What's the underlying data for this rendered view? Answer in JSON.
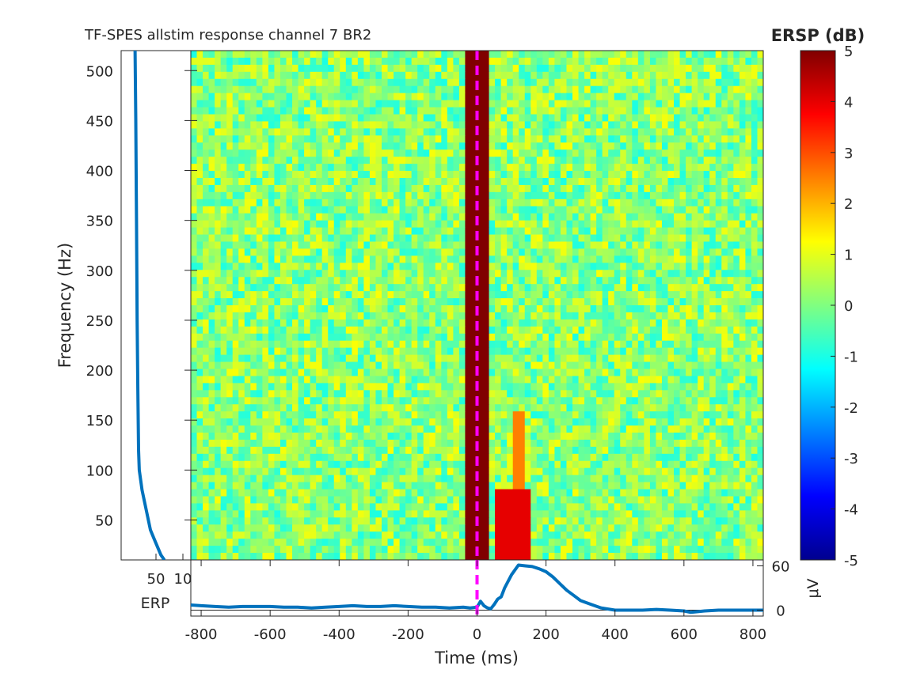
{
  "chart_data": [
    {
      "type": "heatmap",
      "title": "TF-SPES allstim response channel 7 BR2",
      "xlabel": "",
      "ylabel": "Frequency (Hz)",
      "xlim": [
        -830,
        830
      ],
      "ylim": [
        10,
        520
      ],
      "yticks": [
        50,
        100,
        150,
        200,
        250,
        300,
        350,
        400,
        450,
        500
      ],
      "colorbar": {
        "label": "ERSP (dB)",
        "clim": [
          -5,
          5
        ],
        "ticks": [
          5,
          4,
          3,
          2,
          1,
          0,
          -1,
          -2,
          -3,
          -4,
          -5
        ],
        "colormap": "jet",
        "stops": [
          "#00008f",
          "#0000ff",
          "#0080ff",
          "#00ffff",
          "#80ff80",
          "#ffff00",
          "#ff8000",
          "#ff0000",
          "#800000"
        ]
      },
      "stim_marker": {
        "time_ms": 0,
        "color": "#ff00ff",
        "style": "dashed"
      },
      "features": [
        {
          "t_min": -40,
          "t_max": 40,
          "f_min": 10,
          "f_max": 520,
          "value_db": 5
        },
        {
          "t_min": 60,
          "t_max": 160,
          "f_min": 10,
          "f_max": 80,
          "value_db": 4
        },
        {
          "t_min": 110,
          "t_max": 130,
          "f_min": 80,
          "f_max": 160,
          "value_db": 2.5
        }
      ]
    },
    {
      "type": "line",
      "title": "",
      "xlabel": "",
      "ylabel": "",
      "xlim": [
        0,
        100
      ],
      "ylim": [
        10,
        520
      ],
      "xtick_labels": [
        "50",
        "10"
      ],
      "color": "#0072bd",
      "series": [
        {
          "x": [
            20,
            21,
            22,
            23,
            24,
            25,
            26,
            30,
            36,
            42,
            48,
            57,
            62
          ],
          "y": [
            520,
            450,
            350,
            250,
            180,
            120,
            100,
            80,
            60,
            40,
            30,
            15,
            10
          ]
        }
      ]
    },
    {
      "type": "line",
      "title": "",
      "xlabel": "Time (ms)",
      "ylabel": "μV",
      "xlim": [
        -830,
        830
      ],
      "ylim": [
        -8,
        68
      ],
      "xticks": [
        -800,
        -600,
        -400,
        -200,
        0,
        200,
        400,
        600,
        800
      ],
      "yticks": [
        0,
        60
      ],
      "side_label": "ERP",
      "color": "#0072bd",
      "series": [
        {
          "x": [
            -830,
            -800,
            -760,
            -720,
            -680,
            -640,
            -600,
            -560,
            -520,
            -480,
            -440,
            -400,
            -360,
            -320,
            -280,
            -240,
            -200,
            -160,
            -120,
            -80,
            -40,
            -20,
            0,
            10,
            20,
            30,
            40,
            50,
            60,
            70,
            80,
            100,
            120,
            140,
            160,
            180,
            200,
            220,
            240,
            260,
            280,
            300,
            330,
            360,
            400,
            440,
            480,
            520,
            560,
            600,
            620,
            660,
            700,
            740,
            780,
            830
          ],
          "y": [
            7,
            6,
            5,
            4,
            5,
            5,
            5,
            4,
            4,
            3,
            4,
            5,
            6,
            5,
            5,
            6,
            5,
            4,
            4,
            3,
            4,
            3,
            4,
            12,
            6,
            3,
            2,
            8,
            15,
            18,
            30,
            48,
            61,
            60,
            59,
            56,
            52,
            45,
            36,
            27,
            20,
            13,
            8,
            3,
            0,
            0,
            0,
            1,
            0,
            -1,
            -3,
            -1,
            0,
            0,
            0,
            0
          ]
        }
      ],
      "stim_marker": {
        "time_ms": 0,
        "color": "#ff00ff",
        "style": "dashed"
      }
    }
  ]
}
